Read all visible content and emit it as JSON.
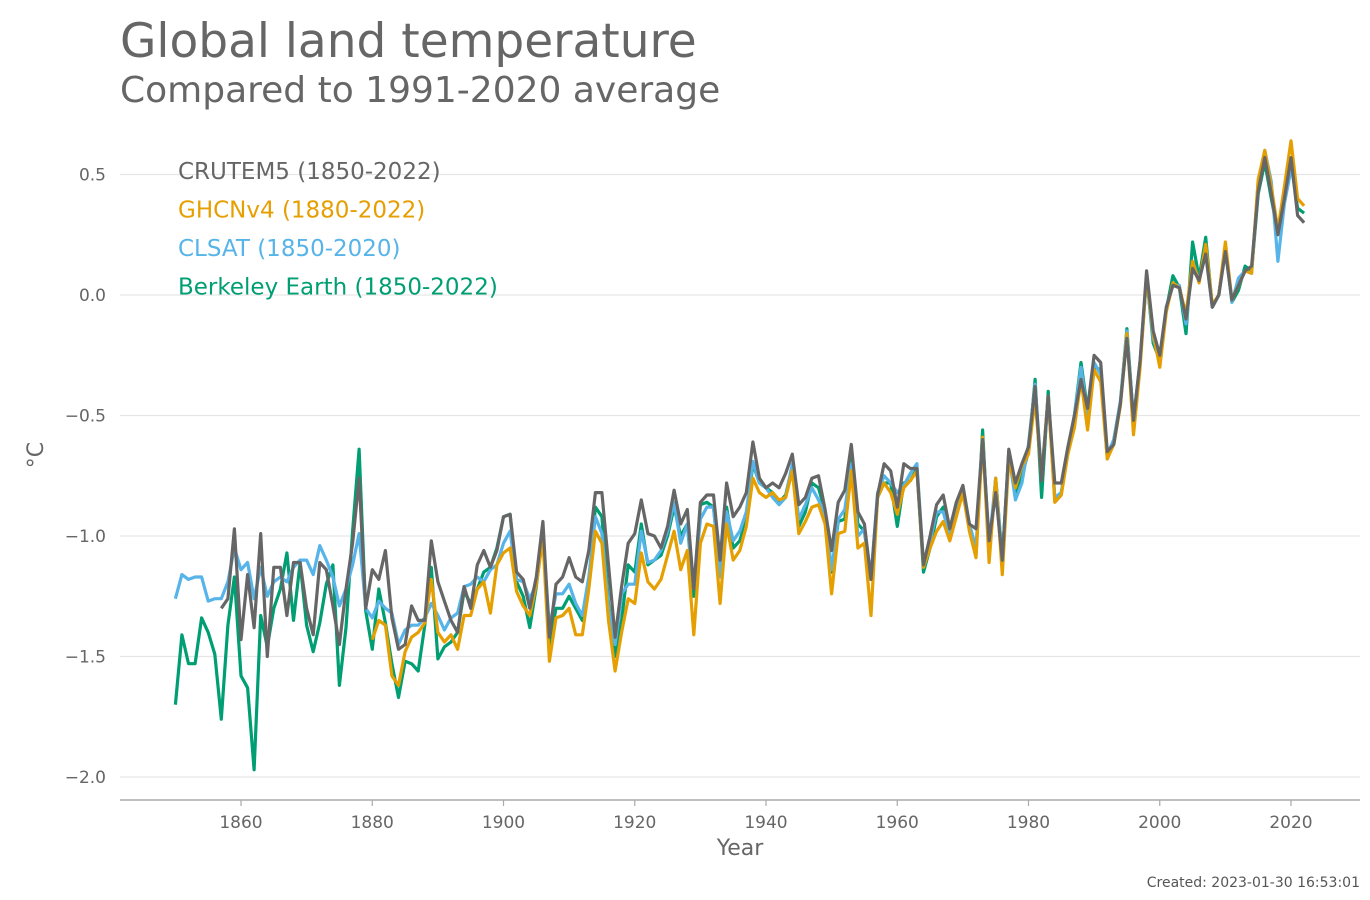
{
  "chart_data": {
    "type": "line",
    "title": "Global land temperature",
    "subtitle": "Compared to 1991-2020 average",
    "xlabel": "Year",
    "ylabel": "°C",
    "xlim": [
      1845,
      2032
    ],
    "ylim": [
      -2.1,
      0.75
    ],
    "xticks": [
      1860,
      1880,
      1900,
      1920,
      1940,
      1960,
      1980,
      2000,
      2020
    ],
    "yticks": [
      0.5,
      0.0,
      -0.5,
      -1.0,
      -1.5,
      -2.0
    ],
    "ytick_labels": [
      "0.5",
      "0.0",
      "−0.5",
      "−1.0",
      "−1.5",
      "−2.0"
    ],
    "grid": "horizontal",
    "legend_position": "top-left",
    "series": [
      {
        "name": "Berkeley Earth (1850-2022)",
        "color": "#009E73",
        "start_year": 1850,
        "values": [
          -1.7,
          -1.41,
          -1.53,
          -1.53,
          -1.34,
          -1.4,
          -1.49,
          -1.76,
          -1.37,
          -1.17,
          -1.58,
          -1.63,
          -1.97,
          -1.33,
          -1.46,
          -1.3,
          -1.22,
          -1.07,
          -1.35,
          -1.11,
          -1.37,
          -1.48,
          -1.36,
          -1.2,
          -1.12,
          -1.62,
          -1.38,
          -0.98,
          -0.64,
          -1.31,
          -1.47,
          -1.22,
          -1.36,
          -1.53,
          -1.67,
          -1.52,
          -1.53,
          -1.56,
          -1.37,
          -1.13,
          -1.51,
          -1.46,
          -1.44,
          -1.4,
          -1.23,
          -1.28,
          -1.22,
          -1.15,
          -1.13,
          -1.05,
          -0.92,
          -0.91,
          -1.19,
          -1.25,
          -1.38,
          -1.21,
          -0.98,
          -1.45,
          -1.3,
          -1.3,
          -1.25,
          -1.3,
          -1.35,
          -1.2,
          -0.88,
          -0.92,
          -1.28,
          -1.5,
          -1.35,
          -1.12,
          -1.15,
          -0.95,
          -1.12,
          -1.1,
          -1.08,
          -1.0,
          -0.88,
          -1.0,
          -0.95,
          -1.25,
          -0.87,
          -0.86,
          -0.88,
          -1.15,
          -0.88,
          -1.05,
          -1.02,
          -0.93,
          -0.7,
          -0.78,
          -0.8,
          -0.82,
          -0.86,
          -0.83,
          -0.71,
          -0.96,
          -0.9,
          -0.78,
          -0.8,
          -0.9,
          -1.15,
          -0.94,
          -0.93,
          -0.66,
          -0.95,
          -0.98,
          -1.18,
          -0.84,
          -0.78,
          -0.78,
          -0.96,
          -0.78,
          -0.77,
          -0.72,
          -1.15,
          -1.05,
          -0.92,
          -0.88,
          -1.0,
          -0.88,
          -0.82,
          -0.95,
          -1.08,
          -0.56,
          -1.08,
          -0.76,
          -1.1,
          -0.65,
          -0.82,
          -0.75,
          -0.65,
          -0.35,
          -0.84,
          -0.4,
          -0.85,
          -0.82,
          -0.65,
          -0.5,
          -0.28,
          -0.48,
          -0.3,
          -0.31,
          -0.68,
          -0.6,
          -0.45,
          -0.14,
          -0.52,
          -0.28,
          0.08,
          -0.2,
          -0.27,
          -0.06,
          0.08,
          0.03,
          -0.16,
          0.22,
          0.07,
          0.24,
          -0.05,
          0.0,
          0.2,
          -0.03,
          0.02,
          0.12,
          0.1,
          0.42,
          0.55,
          0.4,
          0.26,
          0.41,
          0.55,
          0.36,
          0.34
        ]
      },
      {
        "name": "CLSAT (1850-2020)",
        "color": "#56B4E9",
        "start_year": 1850,
        "values": [
          -1.26,
          -1.16,
          -1.18,
          -1.17,
          -1.17,
          -1.27,
          -1.26,
          -1.26,
          -1.19,
          -1.05,
          -1.14,
          -1.11,
          -1.26,
          -1.13,
          -1.25,
          -1.19,
          -1.17,
          -1.19,
          -1.13,
          -1.1,
          -1.1,
          -1.16,
          -1.04,
          -1.1,
          -1.17,
          -1.29,
          -1.22,
          -1.12,
          -0.99,
          -1.3,
          -1.34,
          -1.27,
          -1.3,
          -1.32,
          -1.45,
          -1.39,
          -1.37,
          -1.37,
          -1.34,
          -1.28,
          -1.33,
          -1.39,
          -1.34,
          -1.32,
          -1.21,
          -1.2,
          -1.17,
          -1.19,
          -1.14,
          -1.12,
          -1.03,
          -0.98,
          -1.18,
          -1.19,
          -1.26,
          -1.2,
          -1.0,
          -1.38,
          -1.24,
          -1.24,
          -1.2,
          -1.28,
          -1.33,
          -1.17,
          -0.92,
          -0.99,
          -1.3,
          -1.45,
          -1.24,
          -1.2,
          -1.2,
          -0.98,
          -1.11,
          -1.1,
          -1.06,
          -0.98,
          -0.86,
          -1.03,
          -0.95,
          -1.22,
          -0.93,
          -0.88,
          -0.88,
          -1.17,
          -0.9,
          -1.02,
          -0.98,
          -0.9,
          -0.69,
          -0.78,
          -0.8,
          -0.84,
          -0.87,
          -0.84,
          -0.7,
          -0.93,
          -0.87,
          -0.8,
          -0.85,
          -0.91,
          -1.14,
          -0.93,
          -0.89,
          -0.7,
          -1.0,
          -0.97,
          -1.17,
          -0.82,
          -0.75,
          -0.78,
          -0.82,
          -0.79,
          -0.74,
          -0.7,
          -1.11,
          -1.02,
          -0.9,
          -0.9,
          -1.0,
          -0.88,
          -0.83,
          -0.95,
          -1.05,
          -0.6,
          -1.04,
          -0.76,
          -1.1,
          -0.66,
          -0.85,
          -0.78,
          -0.62,
          -0.37,
          -0.75,
          -0.42,
          -0.84,
          -0.82,
          -0.65,
          -0.5,
          -0.3,
          -0.5,
          -0.28,
          -0.33,
          -0.66,
          -0.6,
          -0.44,
          -0.15,
          -0.52,
          -0.28,
          0.08,
          -0.18,
          -0.27,
          -0.05,
          0.04,
          0.04,
          -0.12,
          0.14,
          0.06,
          0.18,
          -0.05,
          0.0,
          0.2,
          -0.03,
          0.07,
          0.1,
          0.09,
          0.47,
          0.6,
          0.47,
          0.14,
          0.38,
          0.52
        ]
      },
      {
        "name": "GHCNv4 (1880-2022)",
        "color": "#E69F00",
        "start_year": 1880,
        "values": [
          -1.43,
          -1.35,
          -1.37,
          -1.58,
          -1.62,
          -1.48,
          -1.42,
          -1.4,
          -1.36,
          -1.18,
          -1.4,
          -1.44,
          -1.41,
          -1.47,
          -1.33,
          -1.33,
          -1.22,
          -1.19,
          -1.32,
          -1.12,
          -1.07,
          -1.05,
          -1.23,
          -1.29,
          -1.33,
          -1.2,
          -1.01,
          -1.52,
          -1.34,
          -1.33,
          -1.3,
          -1.41,
          -1.41,
          -1.22,
          -0.98,
          -1.03,
          -1.35,
          -1.56,
          -1.4,
          -1.26,
          -1.28,
          -1.07,
          -1.19,
          -1.22,
          -1.18,
          -1.08,
          -0.98,
          -1.14,
          -1.06,
          -1.41,
          -1.03,
          -0.95,
          -0.96,
          -1.28,
          -0.95,
          -1.1,
          -1.06,
          -0.96,
          -0.76,
          -0.82,
          -0.84,
          -0.82,
          -0.85,
          -0.84,
          -0.73,
          -0.99,
          -0.94,
          -0.88,
          -0.87,
          -0.95,
          -1.24,
          -0.99,
          -0.98,
          -0.73,
          -1.05,
          -1.03,
          -1.33,
          -0.84,
          -0.78,
          -0.82,
          -0.91,
          -0.8,
          -0.77,
          -0.73,
          -1.13,
          -1.05,
          -0.98,
          -0.94,
          -1.02,
          -0.92,
          -0.82,
          -0.98,
          -1.09,
          -0.59,
          -1.11,
          -0.76,
          -1.16,
          -0.68,
          -0.8,
          -0.71,
          -0.66,
          -0.43,
          -0.76,
          -0.42,
          -0.86,
          -0.83,
          -0.66,
          -0.55,
          -0.35,
          -0.56,
          -0.31,
          -0.36,
          -0.68,
          -0.62,
          -0.46,
          -0.16,
          -0.58,
          -0.3,
          0.08,
          -0.16,
          -0.3,
          -0.07,
          0.05,
          0.03,
          -0.08,
          0.14,
          0.05,
          0.21,
          -0.04,
          0.0,
          0.22,
          -0.02,
          0.04,
          0.1,
          0.09,
          0.48,
          0.6,
          0.45,
          0.27,
          0.45,
          0.64,
          0.4,
          0.37
        ]
      },
      {
        "name": "CRUTEM5 (1850-2022)",
        "color": "#666666",
        "start_year": 1857,
        "values": [
          -1.3,
          -1.26,
          -0.97,
          -1.43,
          -1.16,
          -1.38,
          -0.99,
          -1.5,
          -1.13,
          -1.13,
          -1.33,
          -1.11,
          -1.11,
          -1.3,
          -1.41,
          -1.11,
          -1.14,
          -1.29,
          -1.45,
          -1.22,
          -1.03,
          -0.76,
          -1.3,
          -1.14,
          -1.18,
          -1.06,
          -1.34,
          -1.47,
          -1.45,
          -1.29,
          -1.35,
          -1.35,
          -1.02,
          -1.19,
          -1.27,
          -1.35,
          -1.4,
          -1.21,
          -1.3,
          -1.12,
          -1.06,
          -1.13,
          -1.06,
          -0.92,
          -0.91,
          -1.15,
          -1.18,
          -1.3,
          -1.17,
          -0.94,
          -1.42,
          -1.2,
          -1.17,
          -1.09,
          -1.17,
          -1.19,
          -1.06,
          -0.82,
          -0.82,
          -1.12,
          -1.42,
          -1.21,
          -1.03,
          -0.99,
          -0.85,
          -0.99,
          -1.0,
          -1.05,
          -0.96,
          -0.81,
          -0.95,
          -0.89,
          -1.22,
          -0.86,
          -0.83,
          -0.83,
          -1.1,
          -0.78,
          -0.92,
          -0.88,
          -0.82,
          -0.61,
          -0.76,
          -0.8,
          -0.78,
          -0.8,
          -0.74,
          -0.66,
          -0.87,
          -0.84,
          -0.76,
          -0.75,
          -0.89,
          -1.06,
          -0.86,
          -0.81,
          -0.62,
          -0.9,
          -0.95,
          -1.18,
          -0.83,
          -0.7,
          -0.73,
          -0.88,
          -0.7,
          -0.72,
          -0.72,
          -1.12,
          -1.0,
          -0.87,
          -0.83,
          -0.97,
          -0.86,
          -0.79,
          -0.95,
          -0.97,
          -0.6,
          -1.02,
          -0.82,
          -1.1,
          -0.64,
          -0.78,
          -0.7,
          -0.63,
          -0.38,
          -0.77,
          -0.42,
          -0.78,
          -0.78,
          -0.63,
          -0.5,
          -0.35,
          -0.47,
          -0.25,
          -0.28,
          -0.65,
          -0.62,
          -0.45,
          -0.18,
          -0.52,
          -0.27,
          0.1,
          -0.15,
          -0.25,
          -0.05,
          0.04,
          0.03,
          -0.1,
          0.11,
          0.06,
          0.17,
          -0.05,
          0.0,
          0.18,
          -0.02,
          0.04,
          0.1,
          0.12,
          0.43,
          0.57,
          0.42,
          0.25,
          0.4,
          0.57,
          0.33,
          0.3
        ]
      }
    ],
    "legend_order": [
      "CRUTEM5 (1850-2022)",
      "GHCNv4 (1880-2022)",
      "CLSAT (1850-2020)",
      "Berkeley Earth (1850-2022)"
    ]
  },
  "footer": {
    "created": "Created: 2023-01-30 16:53:01"
  }
}
